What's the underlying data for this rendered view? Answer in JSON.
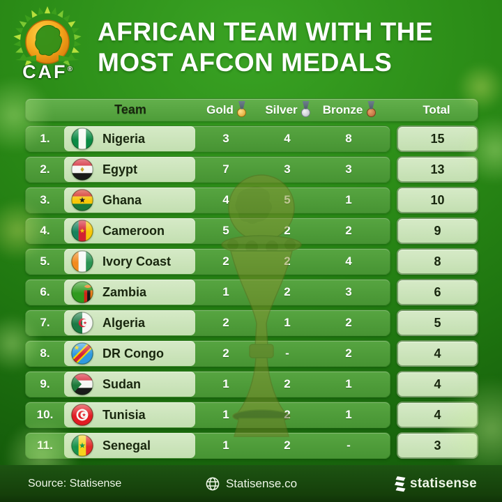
{
  "header": {
    "logo": {
      "text": "CAF",
      "reg": "®"
    },
    "title_line1": "AFRICAN TEAM WITH THE",
    "title_line2": "MOST AFCON MEDALS"
  },
  "table": {
    "columns": {
      "team": "Team",
      "gold": "Gold",
      "silver": "Silver",
      "bronze": "Bronze",
      "total": "Total"
    },
    "rows": [
      {
        "rank": "1.",
        "team": "Nigeria",
        "flag": "nigeria",
        "gold": "3",
        "silver": "4",
        "bronze": "8",
        "total": "15"
      },
      {
        "rank": "2.",
        "team": "Egypt",
        "flag": "egypt",
        "gold": "7",
        "silver": "3",
        "bronze": "3",
        "total": "13"
      },
      {
        "rank": "3.",
        "team": "Ghana",
        "flag": "ghana",
        "gold": "4",
        "silver": "5",
        "bronze": "1",
        "total": "10"
      },
      {
        "rank": "4.",
        "team": "Cameroon",
        "flag": "cameroon",
        "gold": "5",
        "silver": "2",
        "bronze": "2",
        "total": "9"
      },
      {
        "rank": "5.",
        "team": "Ivory Coast",
        "flag": "ivory-coast",
        "gold": "2",
        "silver": "2",
        "bronze": "4",
        "total": "8"
      },
      {
        "rank": "6.",
        "team": "Zambia",
        "flag": "zambia",
        "gold": "1",
        "silver": "2",
        "bronze": "3",
        "total": "6"
      },
      {
        "rank": "7.",
        "team": "Algeria",
        "flag": "algeria",
        "gold": "2",
        "silver": "1",
        "bronze": "2",
        "total": "5"
      },
      {
        "rank": "8.",
        "team": "DR Congo",
        "flag": "dr-congo",
        "gold": "2",
        "silver": "-",
        "bronze": "2",
        "total": "4"
      },
      {
        "rank": "9.",
        "team": "Sudan",
        "flag": "sudan",
        "gold": "1",
        "silver": "2",
        "bronze": "1",
        "total": "4"
      },
      {
        "rank": "10.",
        "team": "Tunisia",
        "flag": "tunisia",
        "gold": "1",
        "silver": "2",
        "bronze": "1",
        "total": "4"
      },
      {
        "rank": "11.",
        "team": "Senegal",
        "flag": "senegal",
        "gold": "1",
        "silver": "2",
        "bronze": "-",
        "total": "3"
      }
    ]
  },
  "footer": {
    "source": "Source: Statisense",
    "website": "Statisense.co",
    "brand": "statisense"
  },
  "colors": {
    "background_green": "#2b8c17",
    "header_bar_green": "#55a33f",
    "row_bar_green": "#4e9a38",
    "pill_light_green": "#cde4bb",
    "footer_dark_green": "#174a0e",
    "gold": "#e0a92c",
    "silver": "#c9ccd4",
    "bronze": "#c2713f"
  },
  "chart_data": {
    "type": "table",
    "title": "AFRICAN TEAM WITH THE MOST AFCON MEDALS",
    "columns": [
      "Team",
      "Gold",
      "Silver",
      "Bronze",
      "Total"
    ],
    "rows": [
      [
        "Nigeria",
        3,
        4,
        8,
        15
      ],
      [
        "Egypt",
        7,
        3,
        3,
        13
      ],
      [
        "Ghana",
        4,
        5,
        1,
        10
      ],
      [
        "Cameroon",
        5,
        2,
        2,
        9
      ],
      [
        "Ivory Coast",
        2,
        2,
        4,
        8
      ],
      [
        "Zambia",
        1,
        2,
        3,
        6
      ],
      [
        "Algeria",
        2,
        1,
        2,
        5
      ],
      [
        "DR Congo",
        2,
        null,
        2,
        4
      ],
      [
        "Sudan",
        1,
        2,
        1,
        4
      ],
      [
        "Tunisia",
        1,
        2,
        1,
        4
      ],
      [
        "Senegal",
        1,
        2,
        null,
        3
      ]
    ]
  }
}
